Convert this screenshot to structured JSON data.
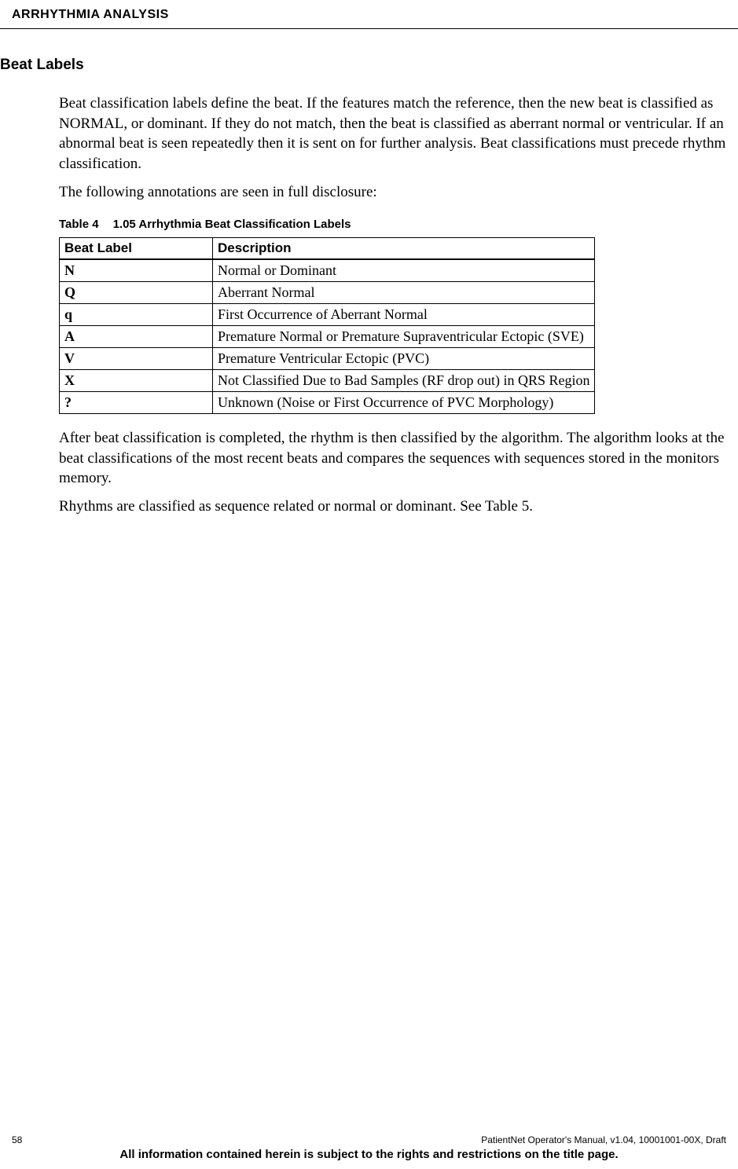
{
  "header": {
    "title": "ARRHYTHMIA ANALYSIS"
  },
  "section": {
    "heading": "Beat Labels",
    "paragraph1": "Beat classification labels define the beat. If the features match the reference, then the new beat is classified as NORMAL, or dominant.  If they do not match, then the beat is classified as aberrant normal or ventricular. If an abnormal beat is seen repeatedly then it is sent on for further analysis. Beat classifications must precede rhythm classification.",
    "paragraph2": "The following annotations are seen in full disclosure:",
    "paragraph3": "After beat classification is completed, the rhythm is then classified by the algorithm. The algorithm looks at the beat classifications of the most recent beats and compares the sequences with sequences stored in the monitors memory.",
    "paragraph4": "Rhythms are classified as sequence related or normal or dominant. See Table 5."
  },
  "table": {
    "caption_num": "Table 4",
    "caption_title": "1.05 Arrhythmia Beat Classification Labels",
    "columns": [
      "Beat Label",
      "Description"
    ],
    "rows": [
      [
        "N",
        "Normal or Dominant"
      ],
      [
        "Q",
        "Aberrant Normal"
      ],
      [
        "q",
        "First Occurrence of Aberrant Normal"
      ],
      [
        "A",
        "Premature Normal or Premature Supraventricular Ectopic (SVE)"
      ],
      [
        "V",
        "Premature Ventricular Ectopic (PVC)"
      ],
      [
        "X",
        "Not Classified Due to Bad Samples (RF drop out) in QRS Region"
      ],
      [
        "?",
        "Unknown (Noise or First Occurrence of PVC Morphology)"
      ]
    ]
  },
  "footer": {
    "page_num": "58",
    "doc_info": "PatientNet Operator's Manual, v1.04, 10001001-00X, Draft",
    "notice": "All information contained herein is subject to the rights and restrictions on the title page."
  }
}
